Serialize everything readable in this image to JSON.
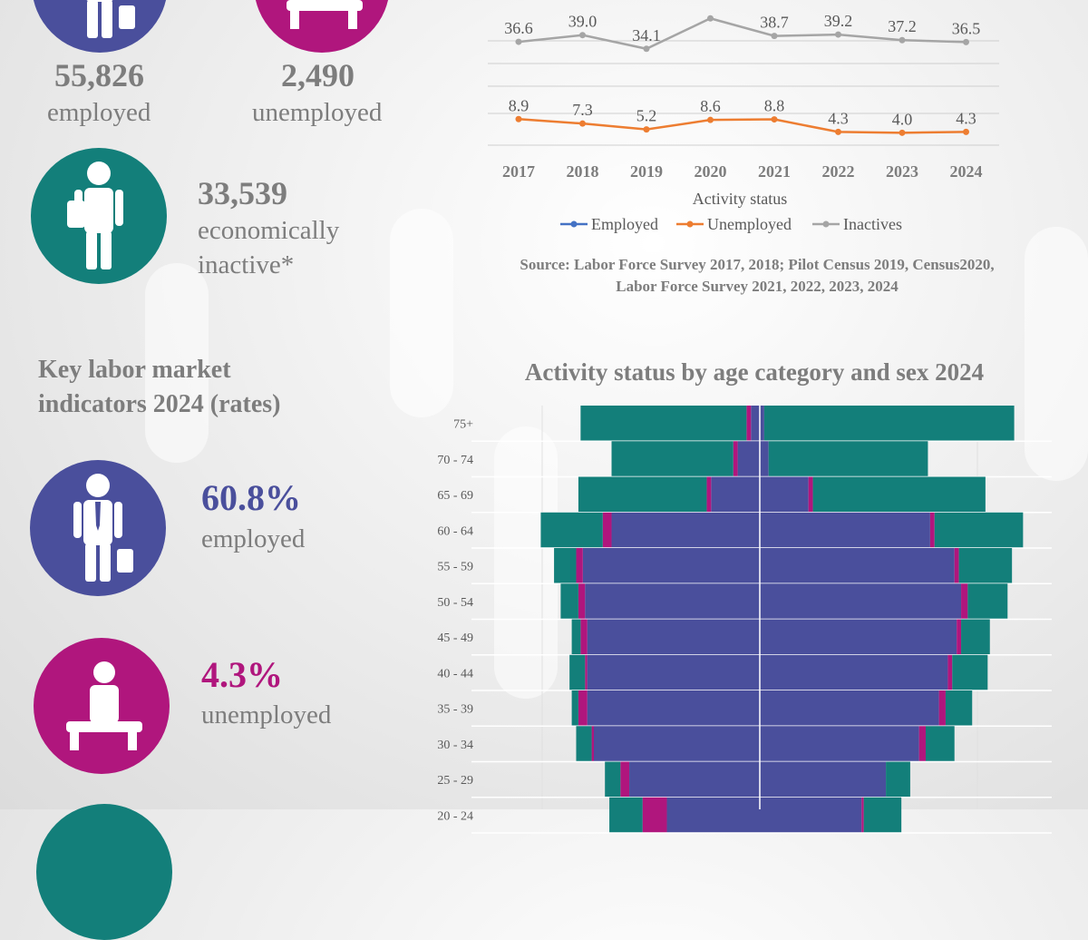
{
  "summary": {
    "employed": {
      "value": "55,826",
      "label": "employed",
      "icon": "employed-person-icon",
      "color": "#4a4f9c"
    },
    "unemployed": {
      "value": "2,490",
      "label": "unemployed",
      "icon": "unemployed-person-icon",
      "color": "#b0167d"
    },
    "inactive": {
      "value": "33,539",
      "label_line1": "economically",
      "label_line2": "inactive*",
      "icon": "inactive-person-icon",
      "color": "#137f7a"
    }
  },
  "rates": {
    "title_line1": "Key labor market",
    "title_line2": "indicators 2024 (rates)",
    "employed": {
      "value": "60.8%",
      "label": "employed",
      "icon": "employed-person-icon",
      "color": "#4a4f9c"
    },
    "unemployed": {
      "value": "4.3%",
      "label": "unemployed",
      "icon": "unemployed-person-icon",
      "color": "#b0167d"
    }
  },
  "source": {
    "line1": "Source: Labor Force Survey 2017, 2018; Pilot Census 2019, Census2020,",
    "line2": "Labor Force Survey 2021, 2022, 2023, 2024"
  },
  "chart_data": [
    {
      "type": "line",
      "xlabel": "Activity status",
      "categories": [
        "2017",
        "2018",
        "2019",
        "2020",
        "2021",
        "2022",
        "2023",
        "2024"
      ],
      "series": [
        {
          "name": "Employed",
          "color": "#4472c4",
          "values": [
            null,
            null,
            null,
            null,
            null,
            null,
            null,
            null
          ]
        },
        {
          "name": "Unemployed",
          "color": "#ed7d31",
          "values": [
            8.9,
            7.3,
            5.2,
            8.6,
            8.8,
            4.3,
            4.0,
            4.3
          ],
          "labels": [
            "8.9",
            "7.3",
            "5.2",
            "8.6",
            "8.8",
            "4.3",
            "4.0",
            "4.3"
          ]
        },
        {
          "name": "Inactives",
          "color": "#a5a5a5",
          "values": [
            36.6,
            39.0,
            34.1,
            45.0,
            38.7,
            39.2,
            37.2,
            36.5
          ],
          "labels": [
            "36.6",
            "39.0",
            "34.1",
            "",
            "38.7",
            "39.2",
            "37.2",
            "36.5"
          ]
        }
      ],
      "legend": "bottom",
      "grid": true
    },
    {
      "type": "bar",
      "orientation": "horizontal-pyramid",
      "title": "Activity status by age category and sex 2024",
      "categories": [
        "75+",
        "70 - 74",
        "65 - 69",
        "60 - 64",
        "55 - 59",
        "50 - 54",
        "45 - 49",
        "40 - 44",
        "35 - 39",
        "30 - 34",
        "25 - 29",
        "20 - 24"
      ],
      "colors": {
        "employed": "#4a4f9c",
        "unemployed": "#b0167d",
        "inactive": "#137f7a"
      },
      "left": [
        {
          "employed": 0.4,
          "unemployed": 0.2,
          "inactive": 7.5
        },
        {
          "employed": 1.0,
          "unemployed": 0.2,
          "inactive": 5.5
        },
        {
          "employed": 2.2,
          "unemployed": 0.2,
          "inactive": 5.8
        },
        {
          "employed": 6.7,
          "unemployed": 0.4,
          "inactive": 2.8
        },
        {
          "employed": 8.0,
          "unemployed": 0.3,
          "inactive": 1.0
        },
        {
          "employed": 7.9,
          "unemployed": 0.3,
          "inactive": 0.8
        },
        {
          "employed": 7.8,
          "unemployed": 0.3,
          "inactive": 0.4
        },
        {
          "employed": 7.8,
          "unemployed": 0.1,
          "inactive": 0.7
        },
        {
          "employed": 7.8,
          "unemployed": 0.4,
          "inactive": 0.3
        },
        {
          "employed": 7.5,
          "unemployed": 0.1,
          "inactive": 0.7
        },
        {
          "employed": 5.9,
          "unemployed": 0.4,
          "inactive": 0.7
        },
        {
          "employed": 4.2,
          "unemployed": 1.1,
          "inactive": 1.5
        }
      ],
      "right": [
        {
          "employed": 0.2,
          "unemployed": 0.0,
          "inactive": 11.3
        },
        {
          "employed": 0.4,
          "unemployed": 0.0,
          "inactive": 7.2
        },
        {
          "employed": 2.2,
          "unemployed": 0.2,
          "inactive": 7.8
        },
        {
          "employed": 7.7,
          "unemployed": 0.2,
          "inactive": 4.0
        },
        {
          "employed": 8.8,
          "unemployed": 0.2,
          "inactive": 2.4
        },
        {
          "employed": 9.1,
          "unemployed": 0.3,
          "inactive": 1.8
        },
        {
          "employed": 8.9,
          "unemployed": 0.2,
          "inactive": 1.3
        },
        {
          "employed": 8.5,
          "unemployed": 0.2,
          "inactive": 1.6
        },
        {
          "employed": 8.1,
          "unemployed": 0.3,
          "inactive": 1.2
        },
        {
          "employed": 7.2,
          "unemployed": 0.3,
          "inactive": 1.3
        },
        {
          "employed": 5.7,
          "unemployed": 0.0,
          "inactive": 1.1
        },
        {
          "employed": 4.6,
          "unemployed": 0.1,
          "inactive": 1.7
        }
      ]
    }
  ]
}
